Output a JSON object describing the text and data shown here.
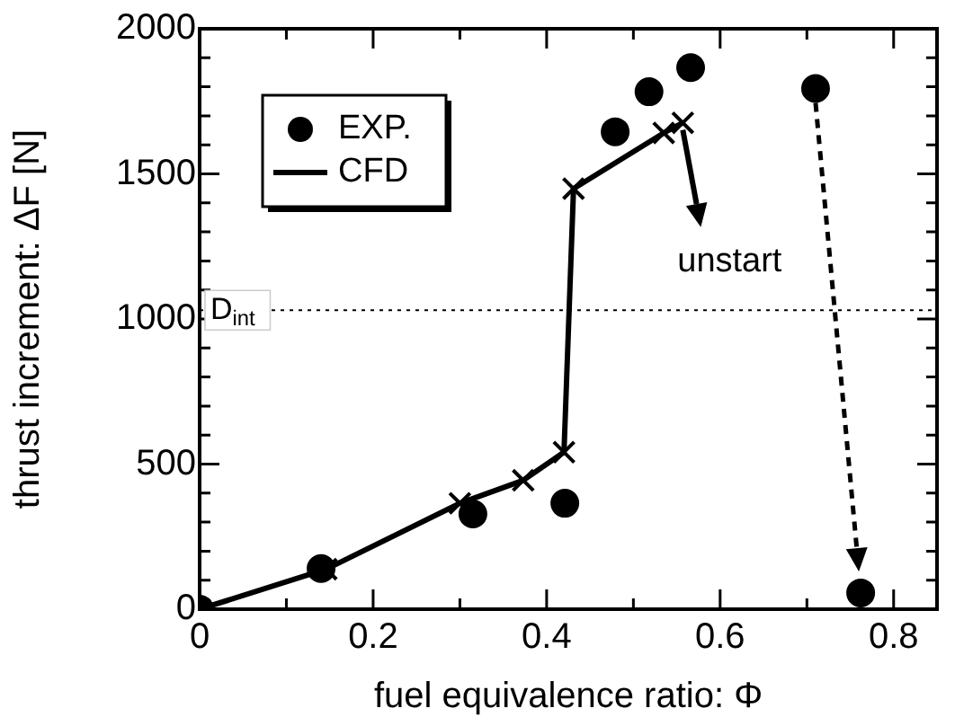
{
  "chart_data": {
    "type": "scatter",
    "xlabel": "fuel equivalence ratio: Φ",
    "ylabel": "thrust increment: ΔF [N]",
    "xlim": [
      0,
      0.85
    ],
    "ylim": [
      0,
      2000
    ],
    "xticks": [
      0,
      {
        "value": 0.1,
        "label": null
      },
      0.2,
      {
        "value": 0.3,
        "label": null
      },
      0.4,
      {
        "value": 0.5,
        "label": null
      },
      0.6,
      {
        "value": 0.7,
        "label": null
      },
      0.8
    ],
    "yticks": [
      0,
      {
        "value": 100,
        "label": null
      },
      {
        "value": 200,
        "label": null
      },
      {
        "value": 300,
        "label": null
      },
      {
        "value": 400,
        "label": null
      },
      500,
      {
        "value": 600,
        "label": null
      },
      {
        "value": 700,
        "label": null
      },
      {
        "value": 800,
        "label": null
      },
      {
        "value": 900,
        "label": null
      },
      1000,
      {
        "value": 1100,
        "label": null
      },
      {
        "value": 1200,
        "label": null
      },
      {
        "value": 1300,
        "label": null
      },
      {
        "value": 1400,
        "label": null
      },
      1500,
      {
        "value": 1600,
        "label": null
      },
      {
        "value": 1700,
        "label": null
      },
      {
        "value": 1800,
        "label": null
      },
      {
        "value": 1900,
        "label": null
      },
      2000
    ],
    "grid": false,
    "legend": "top left",
    "series": [
      {
        "name": "EXP.",
        "type": "scatter",
        "marker": "circle",
        "color": "#000000",
        "x": [
          0,
          0.14,
          0.315,
          0.421,
          0.479,
          0.518,
          0.566,
          0.71,
          0.762
        ],
        "values": [
          0,
          140,
          328,
          365,
          1645,
          1783,
          1866,
          1794,
          56
        ]
      },
      {
        "name": "CFD",
        "type": "line",
        "marker": "cross",
        "line_style": "solid",
        "color": "#000000",
        "x": [
          0,
          0.146,
          0.3,
          0.373,
          0.42,
          0.431,
          0.535,
          0.557
        ],
        "values": [
          0,
          138,
          365,
          444,
          541,
          1449,
          1641,
          1676
        ]
      }
    ],
    "ref_lines": [
      {
        "axis": "y",
        "value": 1030,
        "label": "D$_{int}$",
        "line_style": "dotted",
        "color": "#000000"
      }
    ],
    "annotations": [
      {
        "text": "unstart",
        "x": 0.557,
        "y": 1676
      }
    ]
  }
}
